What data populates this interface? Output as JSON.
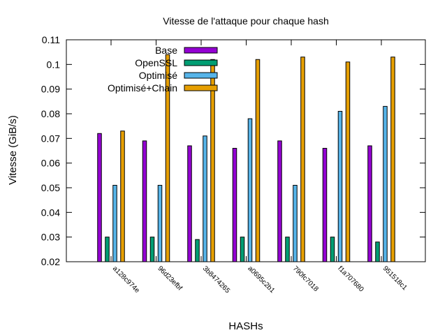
{
  "chart_data": {
    "type": "bar",
    "title": "Vitesse de l'attaque pour chaque hash",
    "xlabel": "HASHs",
    "ylabel": "Vitesse (GiB/s)",
    "ylim": [
      0.02,
      0.11
    ],
    "yticks": [
      "0.02",
      "0.03",
      "0.04",
      "0.05",
      "0.06",
      "0.07",
      "0.08",
      "0.09",
      "0.1",
      "0.11"
    ],
    "grid": false,
    "legend_position": "top-left",
    "categories": [
      "a128c974e",
      "96d23efbf",
      "3b8474265",
      "a0695c2b1",
      "790fc7018",
      "f1a707680",
      "951518c1"
    ],
    "series": [
      {
        "name": "Base",
        "color": "#9400d3",
        "values": [
          0.072,
          0.069,
          0.067,
          0.066,
          0.069,
          0.066,
          0.067
        ]
      },
      {
        "name": "OpenSSL",
        "color": "#009e73",
        "values": [
          0.03,
          0.03,
          0.029,
          0.03,
          0.03,
          0.03,
          0.028
        ]
      },
      {
        "name": "Optimisé",
        "color": "#56b4e9",
        "values": [
          0.051,
          0.051,
          0.071,
          0.078,
          0.051,
          0.081,
          0.083
        ]
      },
      {
        "name": "Optimisé+Chain",
        "color": "#e69f00",
        "values": [
          0.073,
          0.104,
          0.102,
          0.102,
          0.103,
          0.101,
          0.103
        ]
      }
    ]
  }
}
